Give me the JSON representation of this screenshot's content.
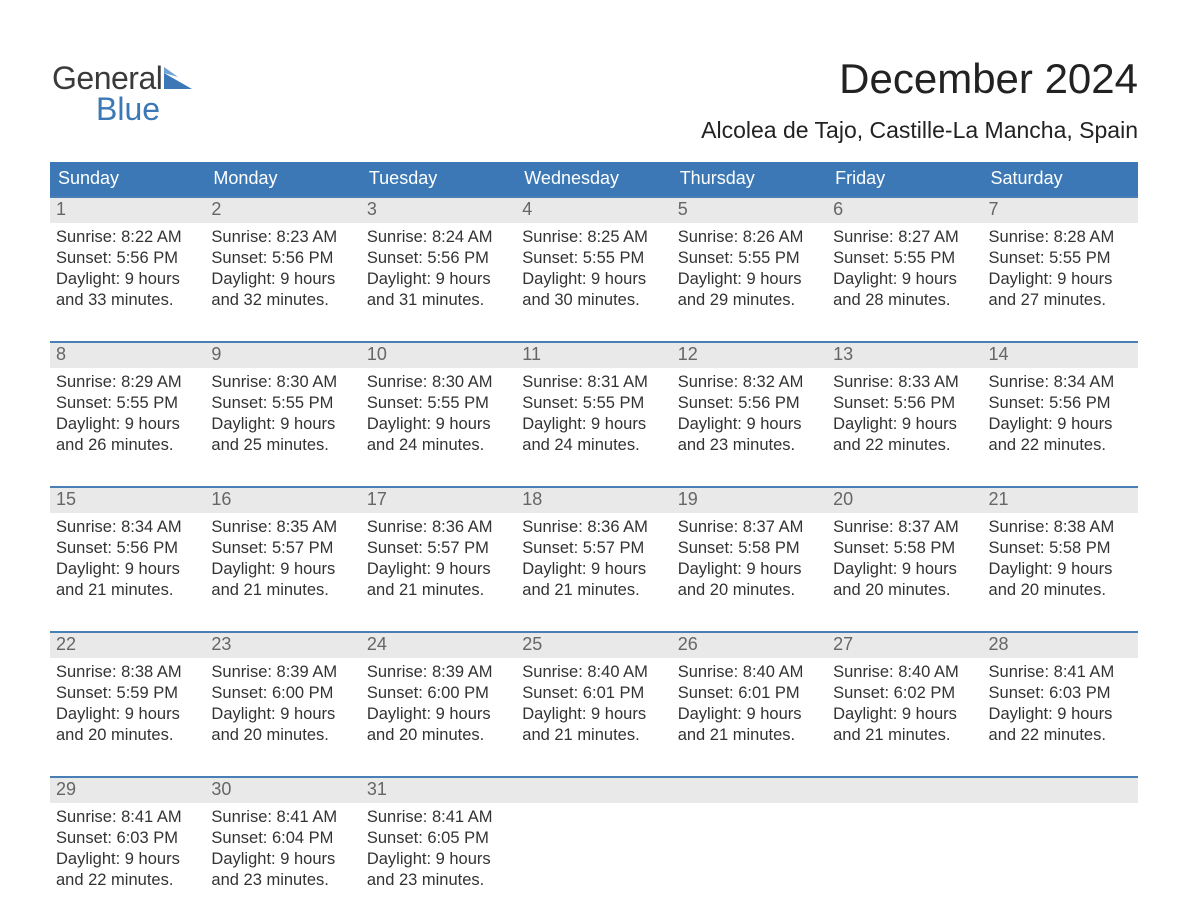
{
  "logo": {
    "line1": "General",
    "line2": "Blue"
  },
  "title": "December 2024",
  "location": "Alcolea de Tajo, Castille-La Mancha, Spain",
  "colors": {
    "header_bg": "#3b78b5",
    "row_border": "#4a7fb6",
    "daynum_bg": "#e9e9e9",
    "page_bg": "#ffffff",
    "text": "#333333",
    "logo_grey": "#3a3a3a",
    "logo_blue": "#3b78b5"
  },
  "fonts": {
    "title_size_pt": 32,
    "location_size_pt": 17,
    "header_size_pt": 14,
    "body_size_pt": 12
  },
  "week_headers": [
    "Sunday",
    "Monday",
    "Tuesday",
    "Wednesday",
    "Thursday",
    "Friday",
    "Saturday"
  ],
  "labels": {
    "sunrise": "Sunrise:",
    "sunset": "Sunset:",
    "daylight": "Daylight:"
  },
  "days": [
    {
      "n": 1,
      "sunrise": "8:22 AM",
      "sunset": "5:56 PM",
      "daylight1": "9 hours",
      "daylight2": "and 33 minutes."
    },
    {
      "n": 2,
      "sunrise": "8:23 AM",
      "sunset": "5:56 PM",
      "daylight1": "9 hours",
      "daylight2": "and 32 minutes."
    },
    {
      "n": 3,
      "sunrise": "8:24 AM",
      "sunset": "5:56 PM",
      "daylight1": "9 hours",
      "daylight2": "and 31 minutes."
    },
    {
      "n": 4,
      "sunrise": "8:25 AM",
      "sunset": "5:55 PM",
      "daylight1": "9 hours",
      "daylight2": "and 30 minutes."
    },
    {
      "n": 5,
      "sunrise": "8:26 AM",
      "sunset": "5:55 PM",
      "daylight1": "9 hours",
      "daylight2": "and 29 minutes."
    },
    {
      "n": 6,
      "sunrise": "8:27 AM",
      "sunset": "5:55 PM",
      "daylight1": "9 hours",
      "daylight2": "and 28 minutes."
    },
    {
      "n": 7,
      "sunrise": "8:28 AM",
      "sunset": "5:55 PM",
      "daylight1": "9 hours",
      "daylight2": "and 27 minutes."
    },
    {
      "n": 8,
      "sunrise": "8:29 AM",
      "sunset": "5:55 PM",
      "daylight1": "9 hours",
      "daylight2": "and 26 minutes."
    },
    {
      "n": 9,
      "sunrise": "8:30 AM",
      "sunset": "5:55 PM",
      "daylight1": "9 hours",
      "daylight2": "and 25 minutes."
    },
    {
      "n": 10,
      "sunrise": "8:30 AM",
      "sunset": "5:55 PM",
      "daylight1": "9 hours",
      "daylight2": "and 24 minutes."
    },
    {
      "n": 11,
      "sunrise": "8:31 AM",
      "sunset": "5:55 PM",
      "daylight1": "9 hours",
      "daylight2": "and 24 minutes."
    },
    {
      "n": 12,
      "sunrise": "8:32 AM",
      "sunset": "5:56 PM",
      "daylight1": "9 hours",
      "daylight2": "and 23 minutes."
    },
    {
      "n": 13,
      "sunrise": "8:33 AM",
      "sunset": "5:56 PM",
      "daylight1": "9 hours",
      "daylight2": "and 22 minutes."
    },
    {
      "n": 14,
      "sunrise": "8:34 AM",
      "sunset": "5:56 PM",
      "daylight1": "9 hours",
      "daylight2": "and 22 minutes."
    },
    {
      "n": 15,
      "sunrise": "8:34 AM",
      "sunset": "5:56 PM",
      "daylight1": "9 hours",
      "daylight2": "and 21 minutes."
    },
    {
      "n": 16,
      "sunrise": "8:35 AM",
      "sunset": "5:57 PM",
      "daylight1": "9 hours",
      "daylight2": "and 21 minutes."
    },
    {
      "n": 17,
      "sunrise": "8:36 AM",
      "sunset": "5:57 PM",
      "daylight1": "9 hours",
      "daylight2": "and 21 minutes."
    },
    {
      "n": 18,
      "sunrise": "8:36 AM",
      "sunset": "5:57 PM",
      "daylight1": "9 hours",
      "daylight2": "and 21 minutes."
    },
    {
      "n": 19,
      "sunrise": "8:37 AM",
      "sunset": "5:58 PM",
      "daylight1": "9 hours",
      "daylight2": "and 20 minutes."
    },
    {
      "n": 20,
      "sunrise": "8:37 AM",
      "sunset": "5:58 PM",
      "daylight1": "9 hours",
      "daylight2": "and 20 minutes."
    },
    {
      "n": 21,
      "sunrise": "8:38 AM",
      "sunset": "5:58 PM",
      "daylight1": "9 hours",
      "daylight2": "and 20 minutes."
    },
    {
      "n": 22,
      "sunrise": "8:38 AM",
      "sunset": "5:59 PM",
      "daylight1": "9 hours",
      "daylight2": "and 20 minutes."
    },
    {
      "n": 23,
      "sunrise": "8:39 AM",
      "sunset": "6:00 PM",
      "daylight1": "9 hours",
      "daylight2": "and 20 minutes."
    },
    {
      "n": 24,
      "sunrise": "8:39 AM",
      "sunset": "6:00 PM",
      "daylight1": "9 hours",
      "daylight2": "and 20 minutes."
    },
    {
      "n": 25,
      "sunrise": "8:40 AM",
      "sunset": "6:01 PM",
      "daylight1": "9 hours",
      "daylight2": "and 21 minutes."
    },
    {
      "n": 26,
      "sunrise": "8:40 AM",
      "sunset": "6:01 PM",
      "daylight1": "9 hours",
      "daylight2": "and 21 minutes."
    },
    {
      "n": 27,
      "sunrise": "8:40 AM",
      "sunset": "6:02 PM",
      "daylight1": "9 hours",
      "daylight2": "and 21 minutes."
    },
    {
      "n": 28,
      "sunrise": "8:41 AM",
      "sunset": "6:03 PM",
      "daylight1": "9 hours",
      "daylight2": "and 22 minutes."
    },
    {
      "n": 29,
      "sunrise": "8:41 AM",
      "sunset": "6:03 PM",
      "daylight1": "9 hours",
      "daylight2": "and 22 minutes."
    },
    {
      "n": 30,
      "sunrise": "8:41 AM",
      "sunset": "6:04 PM",
      "daylight1": "9 hours",
      "daylight2": "and 23 minutes."
    },
    {
      "n": 31,
      "sunrise": "8:41 AM",
      "sunset": "6:05 PM",
      "daylight1": "9 hours",
      "daylight2": "and 23 minutes."
    }
  ],
  "layout": {
    "type": "calendar",
    "columns": 7,
    "rows": 5,
    "first_day_column": 0,
    "last_week_fill": 3
  }
}
